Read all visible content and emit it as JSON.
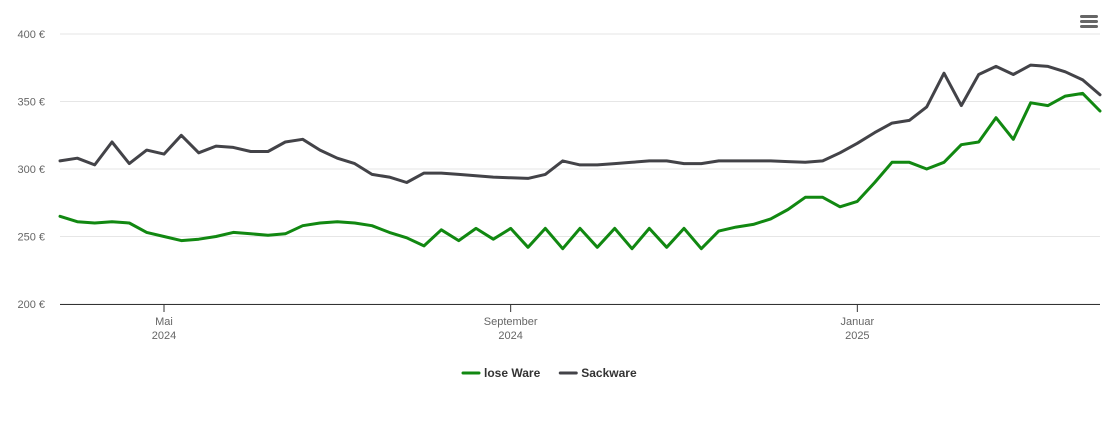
{
  "chart_data": {
    "type": "line",
    "categories": [
      null,
      null,
      null,
      null,
      null,
      null,
      [
        "Mai",
        "2024"
      ],
      null,
      null,
      null,
      null,
      null,
      null,
      null,
      null,
      null,
      null,
      null,
      null,
      null,
      null,
      null,
      null,
      null,
      null,
      null,
      [
        "September",
        "2024"
      ],
      null,
      null,
      null,
      null,
      null,
      null,
      null,
      null,
      null,
      null,
      null,
      null,
      null,
      null,
      null,
      null,
      null,
      null,
      null,
      [
        "Januar",
        "2025"
      ],
      null,
      null,
      null,
      null,
      null,
      null,
      null,
      null,
      null,
      null,
      null,
      null,
      null,
      null
    ],
    "series": [
      {
        "name": "lose Ware",
        "color": "#118811",
        "values": [
          265,
          261,
          260,
          261,
          260,
          253,
          250,
          247,
          248,
          250,
          253,
          252,
          251,
          252,
          258,
          260,
          261,
          260,
          258,
          253,
          249,
          243,
          255,
          247,
          256,
          248,
          256,
          242,
          256,
          241,
          256,
          242,
          256,
          241,
          256,
          242,
          256,
          241,
          254,
          257,
          259,
          263,
          270,
          279,
          279,
          272,
          276,
          290,
          305,
          305,
          300,
          305,
          318,
          320,
          338,
          322,
          349,
          347,
          354,
          356,
          343
        ]
      },
      {
        "name": "Sackware",
        "color": "#434348",
        "values": [
          306,
          308,
          303,
          320,
          304,
          314,
          311,
          325,
          312,
          317,
          316,
          313,
          313,
          320,
          322,
          314,
          308,
          304,
          296,
          294,
          290,
          297,
          297,
          296,
          295,
          294,
          293.5,
          293,
          296,
          306,
          303,
          303,
          304,
          305,
          306,
          306,
          304,
          304,
          306,
          306,
          306,
          306,
          305.5,
          305,
          306,
          312,
          319,
          327,
          334,
          336,
          346,
          371,
          347,
          370,
          376,
          370,
          377,
          376,
          372,
          366,
          355
        ]
      }
    ],
    "ylim": [
      200,
      400
    ],
    "yticks": [
      {
        "value": 200,
        "label": "200 €"
      },
      {
        "value": 250,
        "label": "250 €"
      },
      {
        "value": 300,
        "label": "300 €"
      },
      {
        "value": 350,
        "label": "350 €"
      },
      {
        "value": 400,
        "label": "400 €"
      }
    ],
    "grid": true,
    "legend": "bottom"
  }
}
